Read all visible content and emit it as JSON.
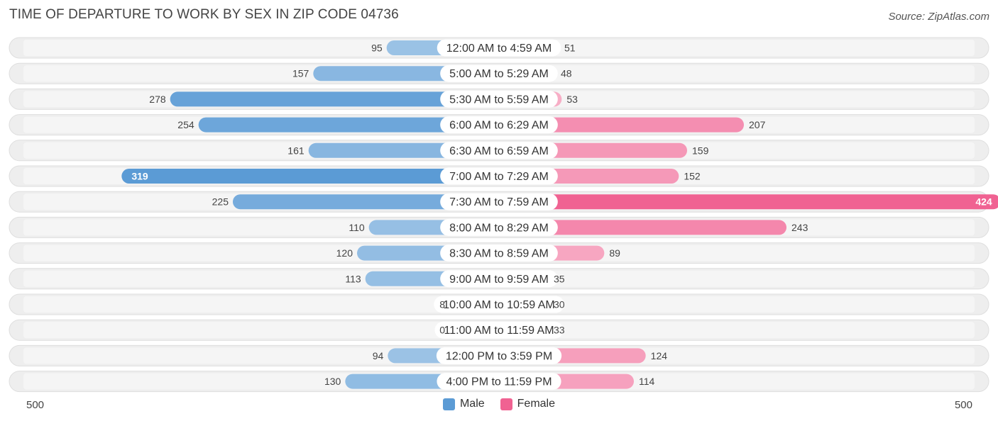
{
  "chart_data": {
    "type": "bar",
    "orientation": "horizontal-diverging",
    "title": "TIME OF DEPARTURE TO WORK BY SEX IN ZIP CODE 04736",
    "source": "Source: ZipAtlas.com",
    "categories": [
      "12:00 AM to 4:59 AM",
      "5:00 AM to 5:29 AM",
      "5:30 AM to 5:59 AM",
      "6:00 AM to 6:29 AM",
      "6:30 AM to 6:59 AM",
      "7:00 AM to 7:29 AM",
      "7:30 AM to 7:59 AM",
      "8:00 AM to 8:29 AM",
      "8:30 AM to 8:59 AM",
      "9:00 AM to 9:59 AM",
      "10:00 AM to 10:59 AM",
      "11:00 AM to 11:59 AM",
      "12:00 PM to 3:59 PM",
      "4:00 PM to 11:59 PM"
    ],
    "series": [
      {
        "name": "Male",
        "color": "#5b9bd5",
        "values": [
          95,
          157,
          278,
          254,
          161,
          319,
          225,
          110,
          120,
          113,
          8,
          0,
          94,
          130
        ]
      },
      {
        "name": "Female",
        "color": "#f06292",
        "values": [
          51,
          48,
          53,
          207,
          159,
          152,
          424,
          243,
          89,
          35,
          30,
          33,
          124,
          114
        ]
      }
    ],
    "xlim": [
      -500,
      500
    ],
    "axis_labels": {
      "left": "500",
      "right": "500"
    },
    "legend": [
      "Male",
      "Female"
    ],
    "legend_position": "bottom-center"
  }
}
